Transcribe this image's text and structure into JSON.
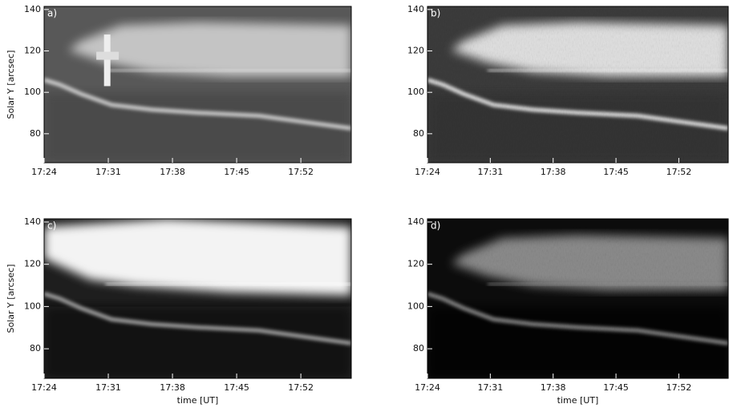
{
  "chart_data": [
    {
      "type": "image",
      "panel_label": "a)",
      "ylabel": "Solar Y [arcsec]",
      "xlim": [
        1044,
        1077.5
      ],
      "ylim": [
        66,
        141.5
      ],
      "xticks": [
        {
          "value": 1044,
          "label": "17:24"
        },
        {
          "value": 1051,
          "label": "17:31"
        },
        {
          "value": 1058,
          "label": "17:38"
        },
        {
          "value": 1065,
          "label": "17:45"
        },
        {
          "value": 1072,
          "label": "17:52"
        }
      ],
      "yticks": [
        80,
        100,
        120,
        140
      ]
    },
    {
      "type": "image",
      "panel_label": "b)",
      "xlim": [
        1044,
        1077.5
      ],
      "ylim": [
        66,
        141.5
      ],
      "xticks": [
        {
          "value": 1044,
          "label": "17:24"
        },
        {
          "value": 1051,
          "label": "17:31"
        },
        {
          "value": 1058,
          "label": "17:38"
        },
        {
          "value": 1065,
          "label": "17:45"
        },
        {
          "value": 1072,
          "label": "17:52"
        }
      ],
      "yticks": [
        80,
        100,
        120,
        140
      ]
    },
    {
      "type": "image",
      "panel_label": "c)",
      "ylabel": "Solar Y [arcsec]",
      "xlabel": "time [UT]",
      "xlim": [
        1044,
        1077.5
      ],
      "ylim": [
        66,
        141.5
      ],
      "xticks": [
        {
          "value": 1044,
          "label": "17:24"
        },
        {
          "value": 1051,
          "label": "17:31"
        },
        {
          "value": 1058,
          "label": "17:38"
        },
        {
          "value": 1065,
          "label": "17:45"
        },
        {
          "value": 1072,
          "label": "17:52"
        }
      ],
      "yticks": [
        80,
        100,
        120,
        140
      ]
    },
    {
      "type": "image",
      "panel_label": "d)",
      "xlabel": "time [UT]",
      "xlim": [
        1044,
        1077.5
      ],
      "ylim": [
        66,
        141.5
      ],
      "xticks": [
        {
          "value": 1044,
          "label": "17:24"
        },
        {
          "value": 1051,
          "label": "17:31"
        },
        {
          "value": 1058,
          "label": "17:38"
        },
        {
          "value": 1065,
          "label": "17:45"
        },
        {
          "value": 1072,
          "label": "17:52"
        }
      ],
      "yticks": [
        80,
        100,
        120,
        140
      ]
    }
  ]
}
